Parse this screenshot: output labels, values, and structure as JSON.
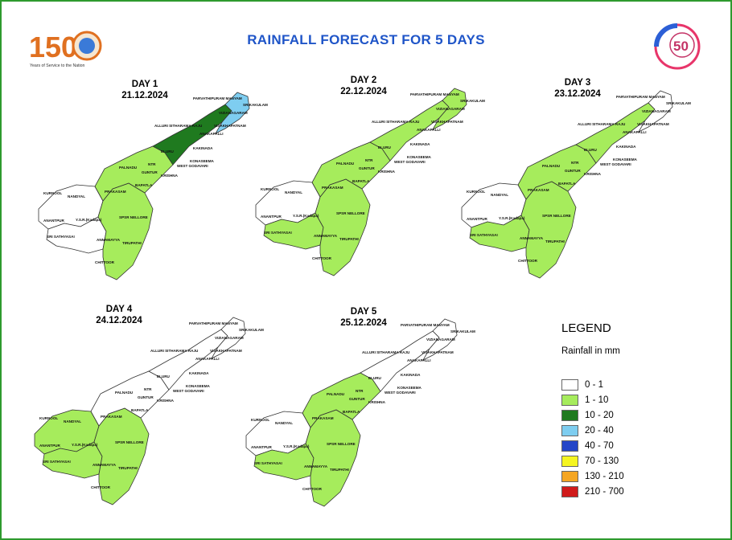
{
  "header": {
    "title": "RAINFALL FORECAST FOR 5 DAYS",
    "left_logo_text": "150",
    "left_logo_sub": "Years of Service to the Nation",
    "right_logo_text": "50"
  },
  "days": [
    {
      "label": "DAY 1",
      "date": "21.12.2024"
    },
    {
      "label": "DAY 2",
      "date": "22.12.2024"
    },
    {
      "label": "DAY 3",
      "date": "23.12.2024"
    },
    {
      "label": "DAY 4",
      "date": "24.12.2024"
    },
    {
      "label": "DAY 5",
      "date": "25.12.2024"
    }
  ],
  "district_labels": [
    "PARVATHIPURAM MANYAM",
    "SRIKAKULAM",
    "VIZIANAGARAM",
    "ALLURI SITHARAMA RAJU",
    "ANAKAPALLI",
    "VISAKHAPATNAM",
    "KAKINADA",
    "KONASEEMA",
    "WEST GODAVARI",
    "ELURU",
    "KRISHNA",
    "NTR",
    "PALNADU",
    "GUNTUR",
    "BAPATLA",
    "PRAKASAM",
    "KURNOOL",
    "NANDYAL",
    "ANANTPUR",
    "Y.S.R.(Kadapa)",
    "SPSR NELLORE",
    "SRI SATHYASAI",
    "ANNAMAYYA",
    "TIRUPATHI",
    "CHITTOOR"
  ],
  "legend": {
    "title": "LEGEND",
    "subtitle": "Rainfall in mm",
    "items": [
      {
        "label": "0 - 1",
        "color": "#ffffff"
      },
      {
        "label": "1 - 10",
        "color": "#a6ec5c"
      },
      {
        "label": "10 - 20",
        "color": "#1f7a1f"
      },
      {
        "label": "20 - 40",
        "color": "#7ecdf0"
      },
      {
        "label": "40 - 70",
        "color": "#2446c8"
      },
      {
        "label": "70 - 130",
        "color": "#f5f520"
      },
      {
        "label": "130 - 210",
        "color": "#f5a623"
      },
      {
        "label": "210 - 700",
        "color": "#d01b1b"
      }
    ]
  },
  "map_fills": {
    "day1": {
      "south": "#a6ec5c",
      "coast": "#a6ec5c",
      "north": "#1f7a1f",
      "north2": "#7ecdf0",
      "west": "#ffffff",
      "rayal_w": "#ffffff"
    },
    "day2": {
      "south": "#a6ec5c",
      "coast": "#a6ec5c",
      "north": "#a6ec5c",
      "north2": "#a6ec5c",
      "west": "#ffffff",
      "rayal_w": "#a6ec5c"
    },
    "day3": {
      "south": "#a6ec5c",
      "coast": "#a6ec5c",
      "north": "#a6ec5c",
      "north2": "#ffffff",
      "west": "#ffffff",
      "rayal_w": "#a6ec5c"
    },
    "day4": {
      "south": "#a6ec5c",
      "coast": "#ffffff",
      "north": "#ffffff",
      "north2": "#ffffff",
      "west": "#a6ec5c",
      "rayal_w": "#a6ec5c"
    },
    "day5": {
      "south": "#a6ec5c",
      "coast": "#a6ec5c",
      "north": "#ffffff",
      "north2": "#ffffff",
      "west": "#ffffff",
      "rayal_w": "#a6ec5c"
    }
  }
}
